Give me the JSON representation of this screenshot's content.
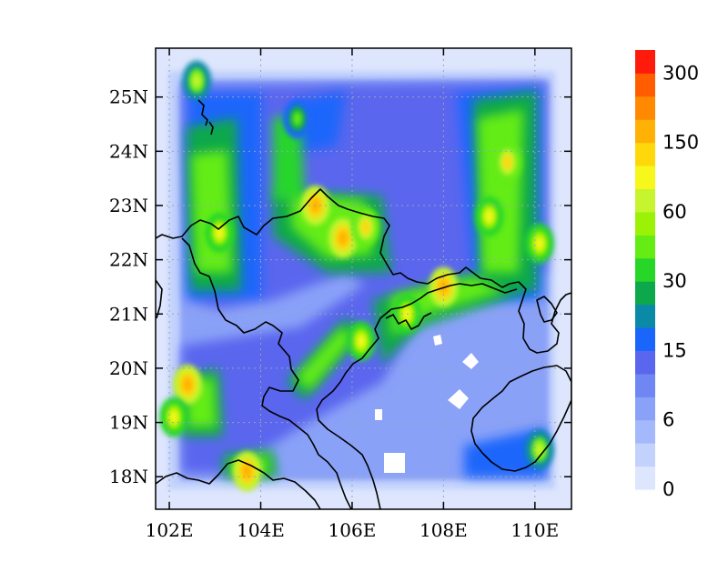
{
  "chart_data": {
    "type": "heatmap",
    "title": "",
    "xlabel": "",
    "ylabel": "",
    "x_ticks": [
      "102E",
      "104E",
      "106E",
      "108E",
      "110E"
    ],
    "x_tick_values": [
      102,
      104,
      106,
      108,
      110
    ],
    "y_ticks": [
      "18N",
      "19N",
      "20N",
      "21N",
      "22N",
      "23N",
      "24N",
      "25N"
    ],
    "y_tick_values": [
      18,
      19,
      20,
      21,
      22,
      23,
      24,
      25
    ],
    "xlim": [
      101.7,
      110.8
    ],
    "ylim": [
      17.4,
      25.9
    ],
    "grid": "dotted",
    "colorbar": {
      "placement": "right",
      "levels": [
        0,
        3,
        6,
        9,
        12,
        15,
        20,
        25,
        30,
        40,
        50,
        60,
        80,
        100,
        150,
        200,
        250,
        300
      ],
      "labels": [
        "0",
        "6",
        "15",
        "30",
        "60",
        "150",
        "300"
      ],
      "colors": [
        "#dde6fd",
        "#c2d2fc",
        "#a4b9fb",
        "#8aa1f8",
        "#6f86f3",
        "#5a66ee",
        "#1a66fb",
        "#0b8aa8",
        "#0ea84c",
        "#28d62a",
        "#64ec14",
        "#9cf206",
        "#c6f42e",
        "#f7f71b",
        "#fed80b",
        "#ffb106",
        "#ff8a02",
        "#ff5d00",
        "#ff1b0b"
      ]
    },
    "hotspots": [
      {
        "lon": 102.4,
        "lat": 19.7,
        "value": 150
      },
      {
        "lon": 102.1,
        "lat": 19.1,
        "value": 80
      },
      {
        "lon": 103.7,
        "lat": 18.1,
        "value": 150
      },
      {
        "lon": 105.2,
        "lat": 23.0,
        "value": 150
      },
      {
        "lon": 105.8,
        "lat": 22.4,
        "value": 150
      },
      {
        "lon": 106.3,
        "lat": 22.6,
        "value": 100
      },
      {
        "lon": 108.0,
        "lat": 21.5,
        "value": 150
      },
      {
        "lon": 109.4,
        "lat": 23.8,
        "value": 100
      },
      {
        "lon": 109.0,
        "lat": 22.8,
        "value": 80
      },
      {
        "lon": 110.1,
        "lat": 22.3,
        "value": 80
      },
      {
        "lon": 103.1,
        "lat": 22.5,
        "value": 80
      },
      {
        "lon": 106.2,
        "lat": 20.5,
        "value": 80
      },
      {
        "lon": 107.2,
        "lat": 21.0,
        "value": 80
      },
      {
        "lon": 110.1,
        "lat": 18.5,
        "value": 60
      },
      {
        "lon": 102.6,
        "lat": 25.3,
        "value": 60
      },
      {
        "lon": 104.8,
        "lat": 24.6,
        "value": 40
      }
    ]
  }
}
